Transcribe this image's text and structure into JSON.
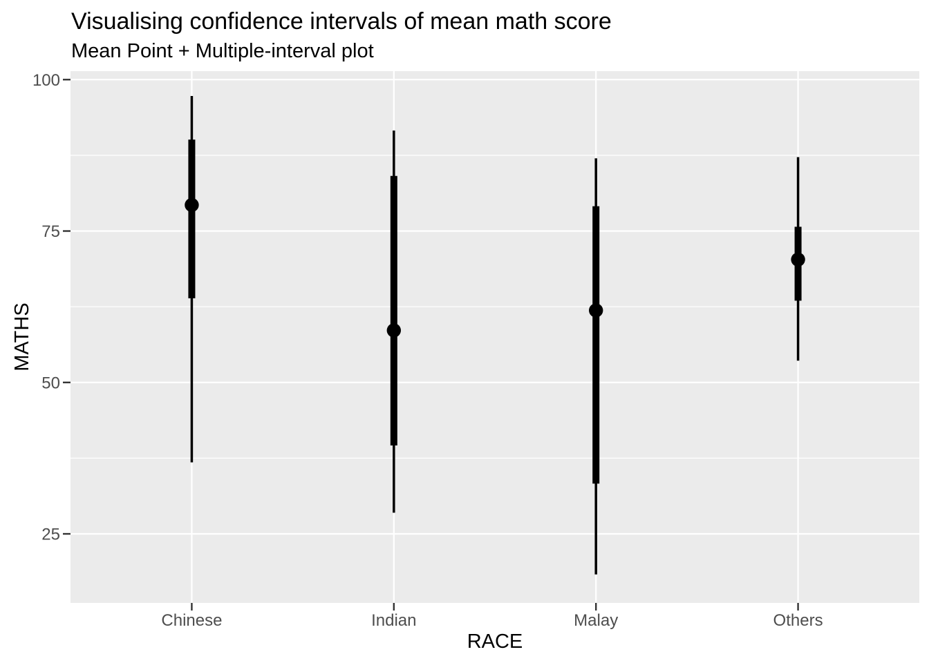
{
  "chart_data": {
    "type": "pointinterval",
    "title": "Visualising confidence intervals of mean math score",
    "subtitle": "Mean Point + Multiple-interval plot",
    "xlabel": "RACE",
    "ylabel": "MATHS",
    "categories": [
      "Chinese",
      "Indian",
      "Malay",
      "Others"
    ],
    "y_ticks": [
      25,
      50,
      75,
      100
    ],
    "y_tick_labels": [
      "25",
      "50",
      "75",
      "100"
    ],
    "y_minor_ticks": [
      37.5,
      62.5,
      87.5
    ],
    "ylim": [
      13.6,
      101.4
    ],
    "point_statistic": "mean",
    "interval_levels": [
      "95% (thick)",
      "99% (thin)"
    ],
    "series": [
      {
        "category": "Chinese",
        "mean": 79.3,
        "interval_95": [
          63.9,
          90.1
        ],
        "interval_99": [
          36.8,
          97.3
        ]
      },
      {
        "category": "Indian",
        "mean": 58.6,
        "interval_95": [
          39.6,
          84.1
        ],
        "interval_99": [
          28.5,
          91.6
        ]
      },
      {
        "category": "Malay",
        "mean": 61.9,
        "interval_95": [
          33.3,
          79.1
        ],
        "interval_99": [
          18.3,
          87.0
        ]
      },
      {
        "category": "Others",
        "mean": 70.3,
        "interval_95": [
          63.5,
          75.7
        ],
        "interval_99": [
          53.6,
          87.2
        ]
      }
    ],
    "legend": "none",
    "grid": "on",
    "colors": {
      "point": "#000000",
      "interval": "#000000",
      "panel_background": "#EBEBEB",
      "gridline": "#FFFFFF",
      "tick_label": "#4D4D4D",
      "tick_mark": "#333333",
      "title": "#000000",
      "figure_background": "#FFFFFF"
    }
  }
}
